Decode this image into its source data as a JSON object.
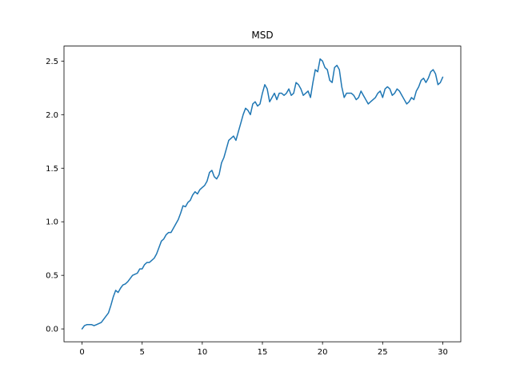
{
  "chart_data": {
    "type": "line",
    "title": "MSD",
    "xlabel": "",
    "ylabel": "",
    "xlim": [
      -1.5,
      31.5
    ],
    "ylim": [
      -0.12,
      2.64
    ],
    "grid": false,
    "x_ticks": [
      0,
      5,
      10,
      15,
      20,
      25,
      30
    ],
    "x_tick_labels": [
      "0",
      "5",
      "10",
      "15",
      "20",
      "25",
      "30"
    ],
    "y_ticks": [
      0.0,
      0.5,
      1.0,
      1.5,
      2.0,
      2.5
    ],
    "y_tick_labels": [
      "0.0",
      "0.5",
      "1.0",
      "1.5",
      "2.0",
      "2.5"
    ],
    "series": [
      {
        "color": "#1f77b4",
        "x": [
          0,
          0.2,
          0.4,
          0.6,
          0.8,
          1.0,
          1.2,
          1.4,
          1.6,
          1.8,
          2.0,
          2.2,
          2.4,
          2.6,
          2.8,
          3.0,
          3.2,
          3.4,
          3.6,
          3.8,
          4.0,
          4.2,
          4.4,
          4.6,
          4.8,
          5.0,
          5.2,
          5.4,
          5.6,
          5.8,
          6.0,
          6.2,
          6.4,
          6.6,
          6.8,
          7.0,
          7.2,
          7.4,
          7.6,
          7.8,
          8.0,
          8.2,
          8.4,
          8.6,
          8.8,
          9.0,
          9.2,
          9.4,
          9.6,
          9.8,
          10.0,
          10.2,
          10.4,
          10.6,
          10.8,
          11.0,
          11.2,
          11.4,
          11.6,
          11.8,
          12.0,
          12.2,
          12.4,
          12.6,
          12.8,
          13.0,
          13.2,
          13.4,
          13.6,
          13.8,
          14.0,
          14.2,
          14.4,
          14.6,
          14.8,
          15.0,
          15.2,
          15.4,
          15.6,
          15.8,
          16.0,
          16.2,
          16.4,
          16.6,
          16.8,
          17.0,
          17.2,
          17.4,
          17.6,
          17.8,
          18.0,
          18.2,
          18.4,
          18.6,
          18.8,
          19.0,
          19.2,
          19.4,
          19.6,
          19.8,
          20.0,
          20.2,
          20.4,
          20.6,
          20.8,
          21.0,
          21.2,
          21.4,
          21.6,
          21.8,
          22.0,
          22.2,
          22.4,
          22.6,
          22.8,
          23.0,
          23.2,
          23.4,
          23.6,
          23.8,
          24.0,
          24.2,
          24.4,
          24.6,
          24.8,
          25.0,
          25.2,
          25.4,
          25.6,
          25.8,
          26.0,
          26.2,
          26.4,
          26.6,
          26.8,
          27.0,
          27.2,
          27.4,
          27.6,
          27.8,
          28.0,
          28.2,
          28.4,
          28.6,
          28.8,
          29.0,
          29.2,
          29.4,
          29.6,
          29.8,
          30.0
        ],
        "y": [
          0.0,
          0.03,
          0.04,
          0.04,
          0.04,
          0.03,
          0.04,
          0.05,
          0.06,
          0.09,
          0.12,
          0.15,
          0.22,
          0.3,
          0.36,
          0.34,
          0.38,
          0.41,
          0.42,
          0.44,
          0.47,
          0.5,
          0.51,
          0.52,
          0.56,
          0.56,
          0.6,
          0.62,
          0.62,
          0.64,
          0.66,
          0.7,
          0.76,
          0.82,
          0.84,
          0.88,
          0.9,
          0.9,
          0.94,
          0.98,
          1.02,
          1.08,
          1.15,
          1.14,
          1.18,
          1.2,
          1.25,
          1.28,
          1.26,
          1.3,
          1.32,
          1.34,
          1.38,
          1.46,
          1.48,
          1.42,
          1.4,
          1.44,
          1.55,
          1.6,
          1.68,
          1.76,
          1.78,
          1.8,
          1.76,
          1.84,
          1.92,
          2.0,
          2.06,
          2.04,
          2.0,
          2.1,
          2.12,
          2.08,
          2.1,
          2.2,
          2.28,
          2.24,
          2.12,
          2.16,
          2.2,
          2.14,
          2.2,
          2.2,
          2.18,
          2.2,
          2.24,
          2.18,
          2.2,
          2.3,
          2.28,
          2.24,
          2.18,
          2.2,
          2.22,
          2.16,
          2.3,
          2.42,
          2.4,
          2.52,
          2.5,
          2.44,
          2.42,
          2.32,
          2.3,
          2.44,
          2.46,
          2.42,
          2.26,
          2.16,
          2.2,
          2.2,
          2.2,
          2.18,
          2.14,
          2.16,
          2.22,
          2.18,
          2.14,
          2.1,
          2.12,
          2.14,
          2.16,
          2.2,
          2.22,
          2.16,
          2.24,
          2.26,
          2.24,
          2.18,
          2.2,
          2.24,
          2.22,
          2.18,
          2.14,
          2.1,
          2.12,
          2.16,
          2.14,
          2.22,
          2.26,
          2.32,
          2.34,
          2.3,
          2.34,
          2.4,
          2.42,
          2.38,
          2.28,
          2.3,
          2.35
        ]
      }
    ]
  }
}
